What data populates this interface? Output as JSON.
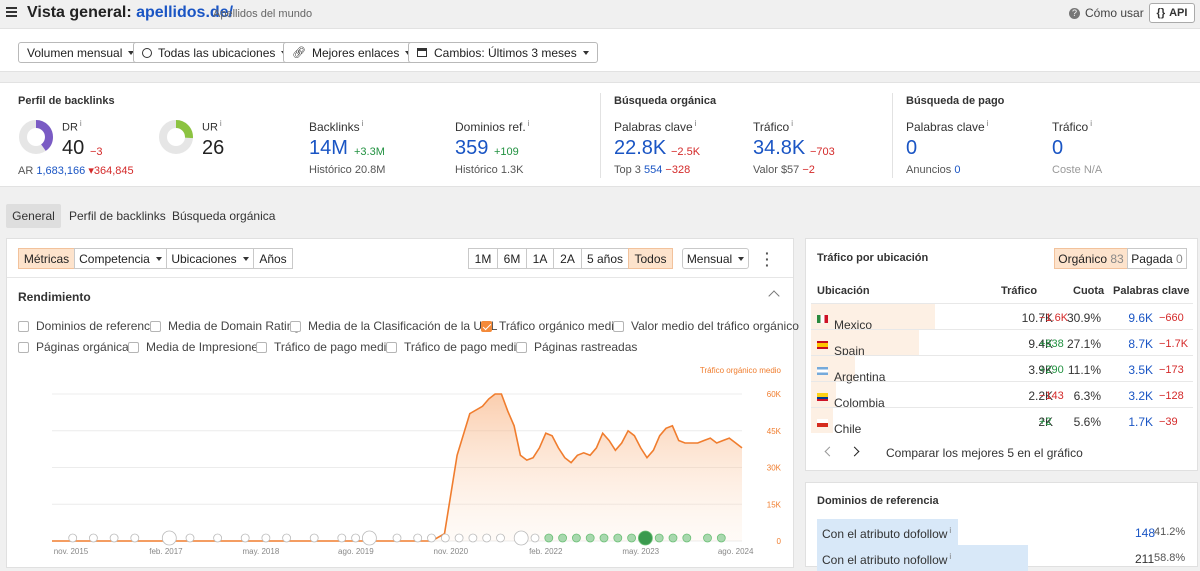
{
  "header": {
    "title_prefix": "Vista general:",
    "title_domain": "apellidos.de/",
    "subtitle": "Apellidos del mundo",
    "how_to_use": "Cómo usar",
    "api_label": "API"
  },
  "filters": {
    "volume": "Volumen mensual",
    "locations": "Todas las ubicaciones",
    "best_links": "Mejores enlaces",
    "changes": "Cambios: Últimos 3 meses"
  },
  "backlinks_profile": {
    "title": "Perfil de backlinks",
    "dr_label": "DR",
    "dr_value": "40",
    "dr_delta": "−3",
    "dr_fraction": 0.4,
    "ar_label": "AR",
    "ar_value": "1,683,166",
    "ar_delta": "364,845",
    "ur_label": "UR",
    "ur_value": "26",
    "ur_fraction": 0.26,
    "backlinks_label": "Backlinks",
    "backlinks_value": "14M",
    "backlinks_delta": "+3.3M",
    "backlinks_hist_label": "Histórico",
    "backlinks_hist_value": "20.8M",
    "refdomains_label": "Dominios ref.",
    "refdomains_value": "359",
    "refdomains_delta": "+109",
    "refdomains_hist_label": "Histórico",
    "refdomains_hist_value": "1.3K"
  },
  "organic": {
    "title": "Búsqueda orgánica",
    "keywords_label": "Palabras clave",
    "keywords_value": "22.8K",
    "keywords_delta": "−2.5K",
    "top3_label": "Top 3",
    "top3_value": "554",
    "top3_delta": "−328",
    "traffic_label": "Tráfico",
    "traffic_value": "34.8K",
    "traffic_delta": "−703",
    "value_label": "Valor",
    "value_value": "$57",
    "value_delta": "−2"
  },
  "paid": {
    "title": "Búsqueda de pago",
    "keywords_label": "Palabras clave",
    "keywords_value": "0",
    "ads_label": "Anuncios",
    "ads_value": "0",
    "traffic_label": "Tráfico",
    "traffic_value": "0",
    "cost_label": "Coste",
    "cost_value": "N/A"
  },
  "main_tabs": [
    "General",
    "Perfil de backlinks",
    "Búsqueda orgánica"
  ],
  "chart_panel": {
    "segments": [
      "Métricas",
      "Competencia",
      "Ubicaciones",
      "Años"
    ],
    "ranges": [
      "1M",
      "6M",
      "1A",
      "2A",
      "5 años",
      "Todos"
    ],
    "interval": "Mensual",
    "section_title": "Rendimiento",
    "checkboxes_row1": [
      "Dominios de referencia",
      "Media de Domain Rating",
      "Media de la Clasificación de la URL",
      "Tráfico orgánico medio",
      "Valor medio del tráfico orgánico"
    ],
    "checkboxes_row2": [
      "Páginas orgánicas",
      "Media de Impresiones",
      "Tráfico de pago medio",
      "Tráfico de pago medio",
      "Páginas rastreadas"
    ],
    "checked": "Tráfico orgánico medio"
  },
  "chart_data": {
    "type": "area",
    "series_label": "Tráfico orgánico medio",
    "color": "#f07d2e",
    "y_ticks": [
      "60K",
      "45K",
      "30K",
      "15K",
      "0"
    ],
    "ylim": [
      0,
      60000
    ],
    "x_ticks": [
      "nov. 2015",
      "feb. 2017",
      "may. 2018",
      "ago. 2019",
      "nov. 2020",
      "feb. 2022",
      "may. 2023",
      "ago. 2024"
    ],
    "x": [
      "2015-08",
      "2020-08",
      "2020-10",
      "2020-12",
      "2021-02",
      "2021-04",
      "2021-05",
      "2021-06",
      "2021-07",
      "2021-08",
      "2021-09",
      "2021-10",
      "2021-11",
      "2021-12",
      "2022-01",
      "2022-02",
      "2022-03",
      "2022-04",
      "2022-05",
      "2022-06",
      "2022-07",
      "2022-08",
      "2022-09",
      "2022-10",
      "2022-11",
      "2022-12",
      "2023-01",
      "2023-02",
      "2023-03",
      "2023-04",
      "2023-05",
      "2023-06",
      "2023-07",
      "2023-08",
      "2023-09",
      "2023-10",
      "2023-11",
      "2023-12",
      "2024-01",
      "2024-02",
      "2024-03",
      "2024-04",
      "2024-05",
      "2024-06",
      "2024-07",
      "2024-08",
      "2024-09"
    ],
    "y": [
      0,
      0,
      3000,
      35000,
      52000,
      55000,
      58000,
      60000,
      60000,
      53000,
      47000,
      35000,
      33000,
      34000,
      38000,
      44000,
      43000,
      38000,
      34000,
      32000,
      35000,
      36000,
      35000,
      38000,
      44000,
      41000,
      37000,
      40000,
      45000,
      43000,
      38000,
      34000,
      37000,
      43000,
      46000,
      47000,
      41000,
      40000,
      40000,
      40000,
      41000,
      42000,
      40000,
      41000,
      42000,
      40000,
      38000
    ]
  },
  "traffic_by_location": {
    "title": "Tráfico por ubicación",
    "tab_organic": "Orgánico",
    "tab_organic_count": "83",
    "tab_paid": "Pagada",
    "tab_paid_count": "0",
    "columns": [
      "Ubicación",
      "Tráfico",
      "Cuota",
      "Palabras clave"
    ],
    "rows": [
      {
        "country": "Mexico",
        "traffic": "10.7K",
        "traffic_delta": "−1.6K",
        "share": "30.9%",
        "share_fraction": 0.309,
        "keywords": "9.6K",
        "keywords_delta": "−660"
      },
      {
        "country": "Spain",
        "traffic": "9.4K",
        "traffic_delta": "+838",
        "share": "27.1%",
        "share_fraction": 0.271,
        "keywords": "8.7K",
        "keywords_delta": "−1.7K"
      },
      {
        "country": "Argentina",
        "traffic": "3.9K",
        "traffic_delta": "+290",
        "share": "11.1%",
        "share_fraction": 0.111,
        "keywords": "3.5K",
        "keywords_delta": "−173"
      },
      {
        "country": "Colombia",
        "traffic": "2.2K",
        "traffic_delta": "−143",
        "share": "6.3%",
        "share_fraction": 0.063,
        "keywords": "3.2K",
        "keywords_delta": "−128"
      },
      {
        "country": "Chile",
        "traffic": "2K",
        "traffic_delta": "+2",
        "share": "5.6%",
        "share_fraction": 0.056,
        "keywords": "1.7K",
        "keywords_delta": "−39"
      }
    ],
    "compare_label": "Comparar los mejores 5 en el gráfico"
  },
  "referring_domains": {
    "title": "Dominios de referencia",
    "rows": [
      {
        "label": "Con el atributo dofollow",
        "value": "148",
        "pct": "41.2%",
        "fraction": 0.412
      },
      {
        "label": "Con el atributo nofollow",
        "value": "211",
        "pct": "58.8%",
        "fraction": 0.588
      }
    ]
  }
}
